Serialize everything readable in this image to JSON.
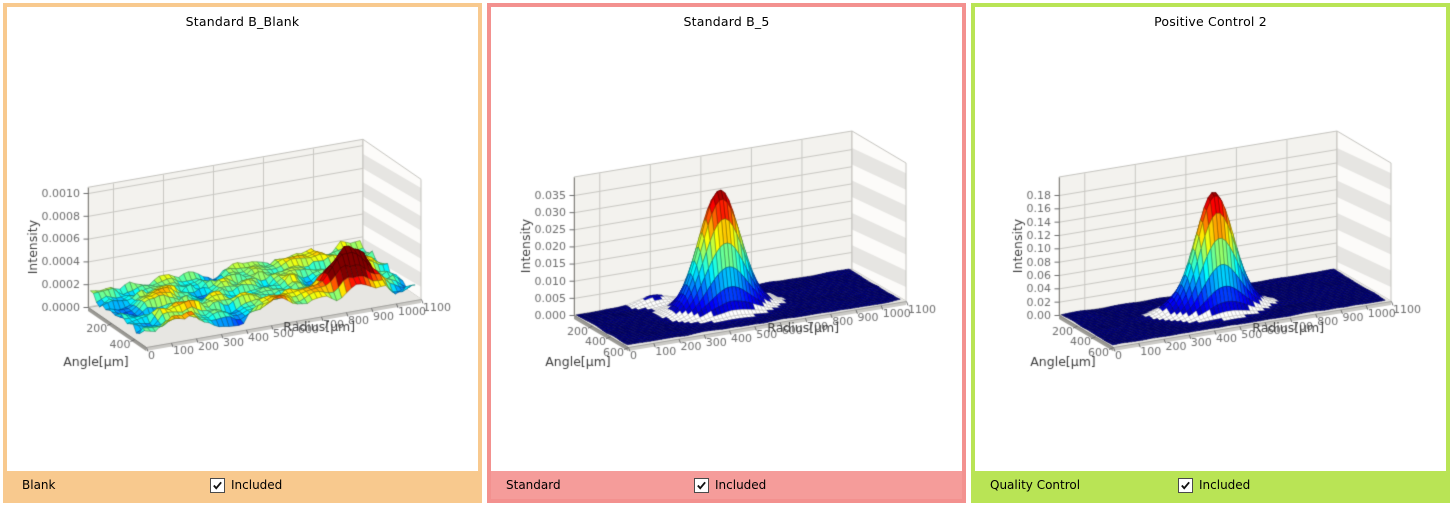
{
  "panels": [
    {
      "title": "Standard B_Blank",
      "accent": "#f8c98e",
      "footer_bg": "#f8c98e",
      "category": "Blank",
      "included_label": "Included",
      "included": true
    },
    {
      "title": "Standard B_5",
      "accent": "#f3918f",
      "footer_bg": "#f59c9a",
      "category": "Standard",
      "included_label": "Included",
      "included": true
    },
    {
      "title": "Positive Control 2",
      "accent": "#b9e455",
      "footer_bg": "#b9e455",
      "category": "Quality Control",
      "included_label": "Included",
      "included": true
    }
  ],
  "chart_data": [
    {
      "type": "surface3d",
      "title": "Standard B_Blank",
      "xlabel": "Radius[µm]",
      "ylabel": "Angle[µm]",
      "zlabel": "Intensity",
      "x_axis": {
        "min": 0,
        "max": 1100,
        "tick_step": 100
      },
      "y_axis": {
        "min": 0,
        "max": 500,
        "tick_step": 200
      },
      "z_axis": {
        "min": 0,
        "max": 0.001,
        "tick_step": 0.0002,
        "decimals": 4
      },
      "colormap": "jet",
      "surface": {
        "model": "random_noise_field",
        "grid": [
          55,
          18
        ],
        "seed": 11,
        "noise_base": 1.3e-05,
        "noise_amp": 0.000235,
        "peaks": [
          {
            "r": 860,
            "a": 380,
            "h": 0.00035,
            "sr": 62,
            "sa": 55
          }
        ],
        "color_max": 0.00027,
        "white_band": [
          0.018,
          0.06
        ]
      }
    },
    {
      "type": "surface3d",
      "title": "Standard B_5",
      "xlabel": "Radius[µm]",
      "ylabel": "Angle[µm]",
      "zlabel": "Intensity",
      "x_axis": {
        "min": 0,
        "max": 1100,
        "tick_step": 100
      },
      "y_axis": {
        "min": 0,
        "max": 600,
        "tick_step": 200
      },
      "z_axis": {
        "min": 0,
        "max": 0.035,
        "tick_step": 0.005,
        "decimals": 3
      },
      "colormap": "jet",
      "surface": {
        "model": "gaussian_peak",
        "grid": [
          72,
          24
        ],
        "seed": 23,
        "noise_base": 2e-05,
        "noise_amp": 0.0005,
        "peaks": [
          {
            "r": 480,
            "a": 270,
            "h": 0.0345,
            "sr": 78,
            "sa": 72
          },
          {
            "r": 300,
            "a": 40,
            "h": 0.0024,
            "sr": 55,
            "sa": 45
          }
        ],
        "color_max": 0.035,
        "white_band": [
          0.018,
          0.06
        ]
      }
    },
    {
      "type": "surface3d",
      "title": "Positive Control 2",
      "xlabel": "Radius[µm]",
      "ylabel": "Angle[µm]",
      "zlabel": "Intensity",
      "x_axis": {
        "min": 0,
        "max": 1100,
        "tick_step": 100
      },
      "y_axis": {
        "min": 0,
        "max": 600,
        "tick_step": 200
      },
      "z_axis": {
        "min": 0,
        "max": 0.18,
        "tick_step": 0.02,
        "decimals": 2
      },
      "colormap": "jet",
      "surface": {
        "model": "gaussian_peak",
        "grid": [
          72,
          24
        ],
        "seed": 37,
        "noise_base": 0.0001,
        "noise_amp": 0.0025,
        "peaks": [
          {
            "r": 505,
            "a": 305,
            "h": 0.176,
            "sr": 72,
            "sa": 66
          },
          {
            "r": 350,
            "a": 260,
            "h": 0.01,
            "sr": 48,
            "sa": 42
          },
          {
            "r": 640,
            "a": 350,
            "h": 0.005,
            "sr": 50,
            "sa": 40
          }
        ],
        "color_max": 0.18,
        "white_band": [
          0.018,
          0.06
        ]
      }
    }
  ]
}
